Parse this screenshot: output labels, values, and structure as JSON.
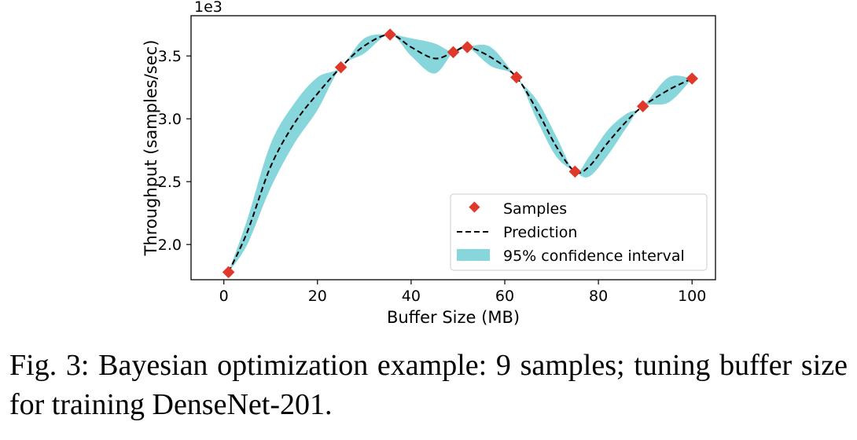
{
  "chart_data": {
    "type": "line",
    "xlabel": "Buffer Size (MB)",
    "ylabel": "Throughput (samples/sec)",
    "y_scale_label": "1e3",
    "xlim": [
      -7,
      105
    ],
    "ylim": [
      1.72,
      3.82
    ],
    "xticks": [
      0,
      20,
      40,
      60,
      80,
      100
    ],
    "xtick_labels": [
      "0",
      "20",
      "40",
      "60",
      "80",
      "100"
    ],
    "yticks": [
      2.0,
      2.5,
      3.0,
      3.5
    ],
    "ytick_labels": [
      "2.0",
      "2.5",
      "3.0",
      "3.5"
    ],
    "grid": false,
    "legend_position": "lower-right",
    "legend": {
      "samples": "Samples",
      "prediction": "Prediction",
      "interval": "95% confidence interval"
    },
    "colors": {
      "samples": "#e0382a",
      "prediction": "#000000",
      "interval": "#86d6dc"
    },
    "samples": {
      "x": [
        1,
        25,
        35.5,
        49,
        52,
        62.5,
        75,
        89.5,
        100
      ],
      "y": [
        1.78,
        3.41,
        3.67,
        3.53,
        3.57,
        3.33,
        2.58,
        3.1,
        3.32
      ]
    },
    "prediction": {
      "x": [
        1,
        5,
        10,
        15,
        20,
        25,
        30,
        35.5,
        40,
        45,
        49,
        52,
        57,
        62.5,
        67,
        71,
        75,
        78,
        82,
        86,
        89.5,
        95,
        100
      ],
      "y": [
        1.78,
        2.1,
        2.62,
        2.96,
        3.2,
        3.41,
        3.58,
        3.67,
        3.57,
        3.48,
        3.53,
        3.57,
        3.49,
        3.33,
        3.06,
        2.78,
        2.58,
        2.62,
        2.81,
        2.98,
        3.1,
        3.23,
        3.32
      ]
    },
    "confidence_interval": {
      "x": [
        1,
        5,
        10,
        15,
        20,
        25,
        30,
        35.5,
        40,
        45,
        49,
        52,
        57,
        62.5,
        67,
        71,
        75,
        78,
        82,
        86,
        89.5,
        95,
        100
      ],
      "lower": [
        1.78,
        2.0,
        2.45,
        2.8,
        3.07,
        3.41,
        3.52,
        3.67,
        3.5,
        3.36,
        3.53,
        3.57,
        3.42,
        3.33,
        2.98,
        2.7,
        2.58,
        2.54,
        2.71,
        2.93,
        3.1,
        3.13,
        3.32
      ],
      "upper": [
        1.78,
        2.2,
        2.8,
        3.12,
        3.33,
        3.41,
        3.64,
        3.67,
        3.64,
        3.6,
        3.53,
        3.57,
        3.57,
        3.33,
        3.14,
        2.86,
        2.58,
        2.7,
        2.91,
        3.04,
        3.1,
        3.33,
        3.32
      ]
    }
  },
  "caption": "Fig. 3: Bayesian optimization example: 9 samples; tuning buffer size for training DenseNet-201."
}
